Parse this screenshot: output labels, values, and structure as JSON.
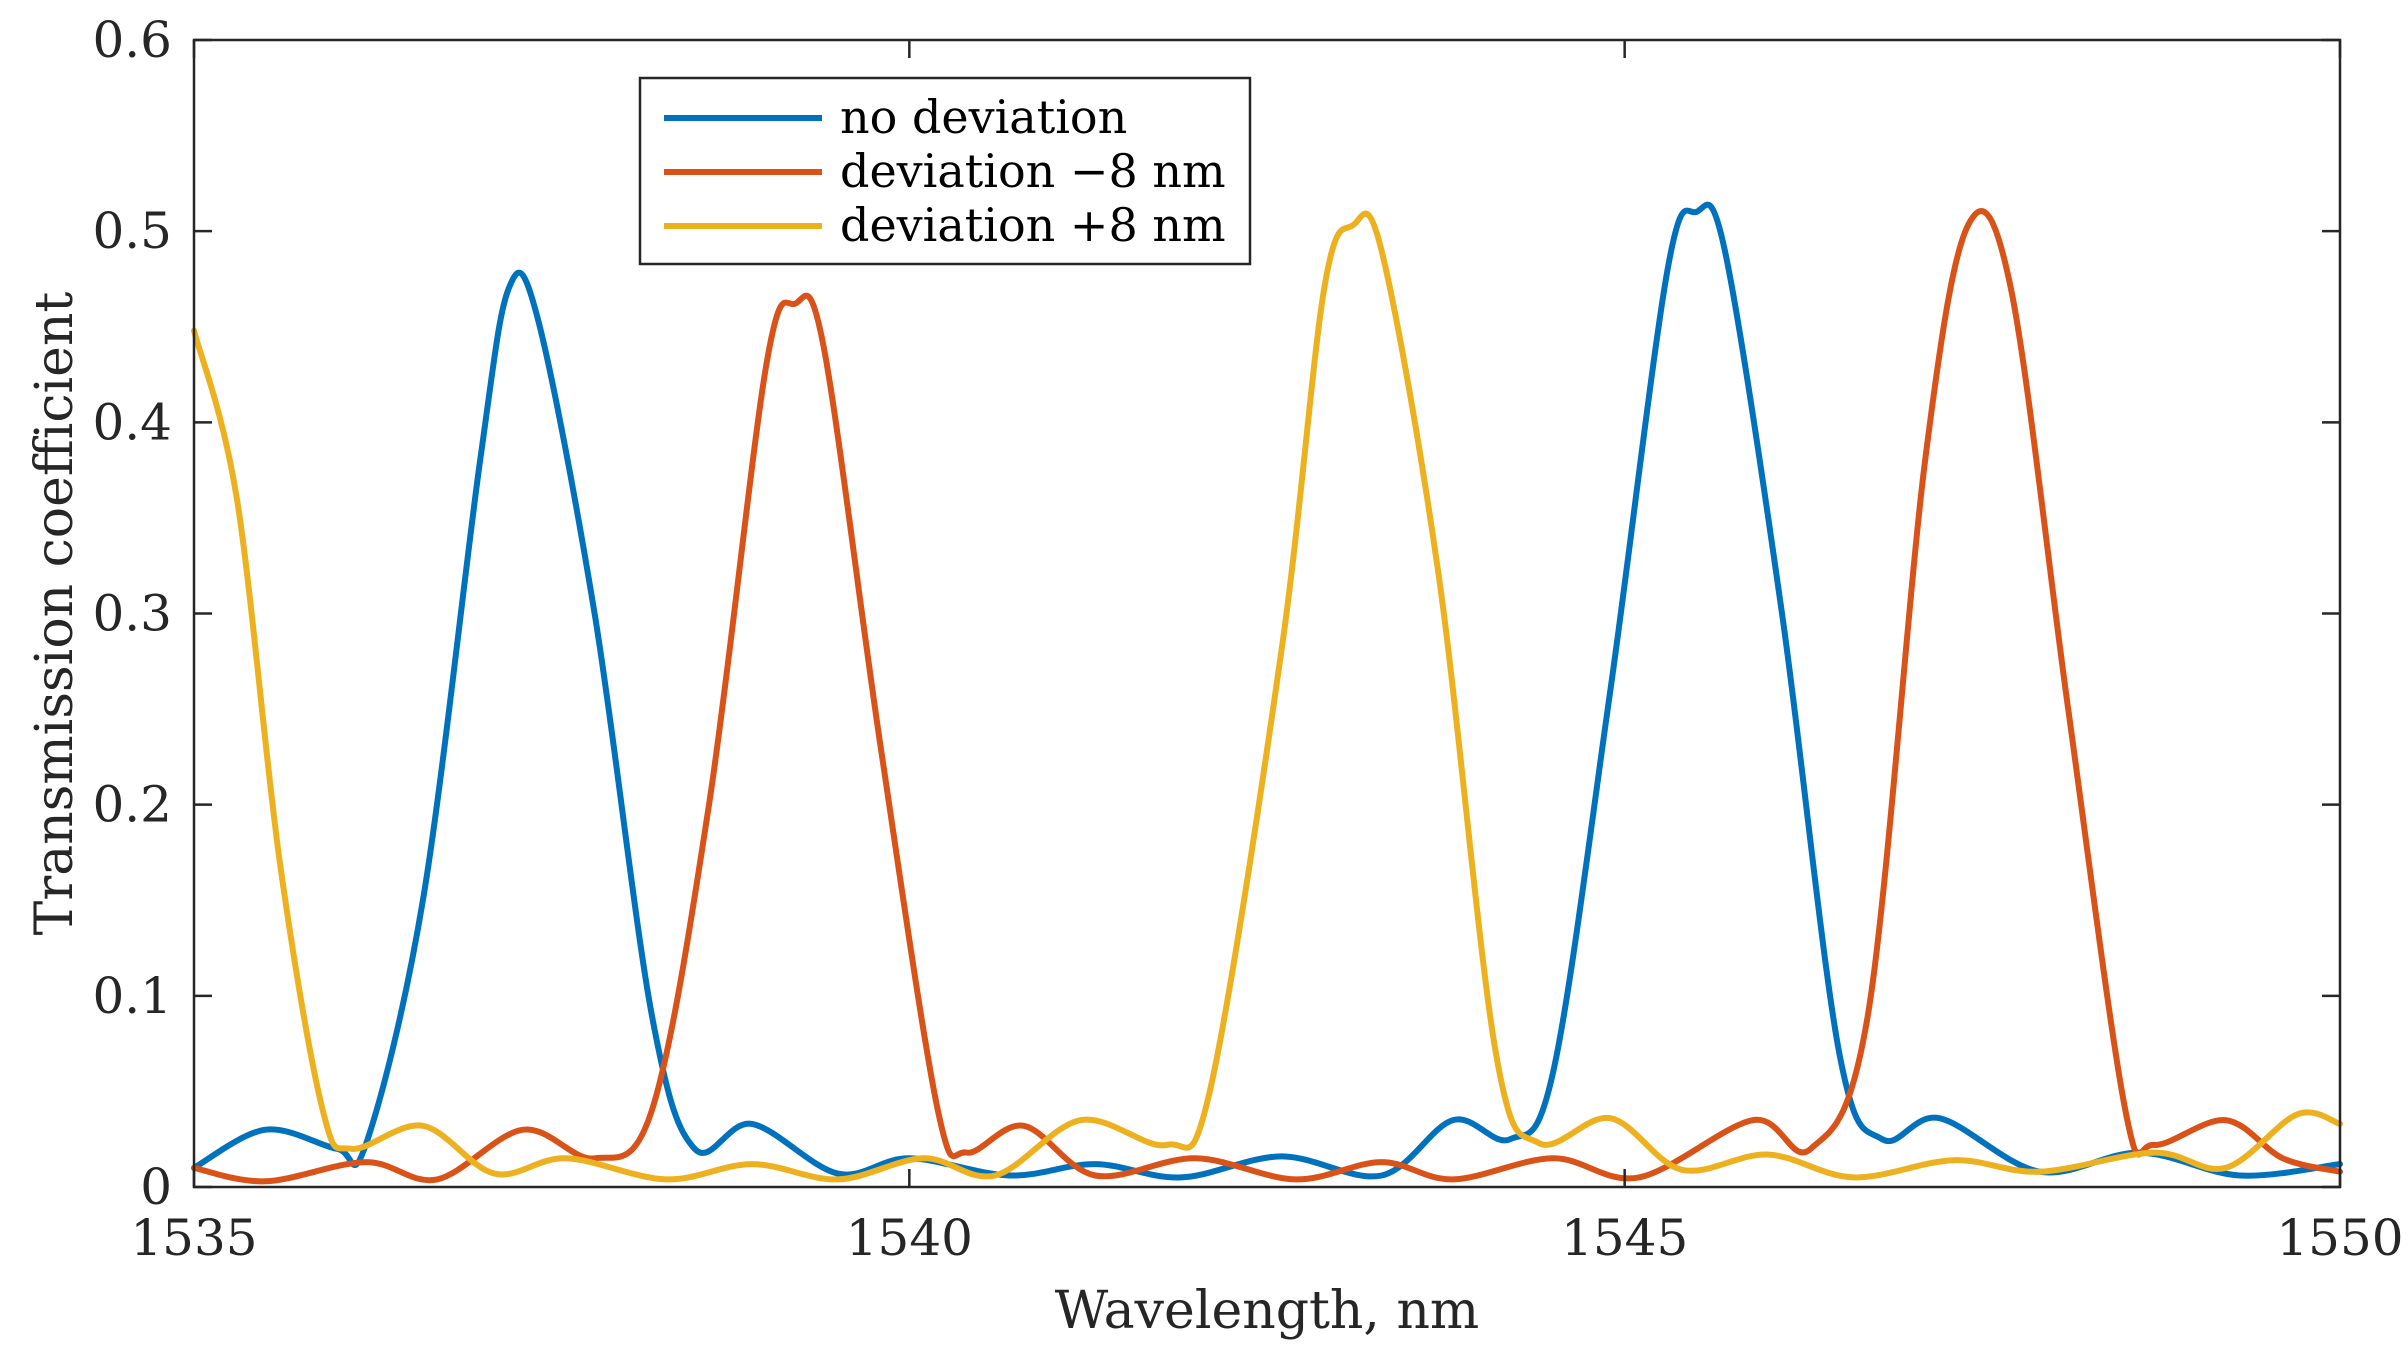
{
  "chart_data": {
    "type": "line",
    "title": "",
    "xlabel": "Wavelength, nm",
    "ylabel": "Transmission coefficient",
    "xlim": [
      1535,
      1550
    ],
    "ylim": [
      0,
      0.6
    ],
    "xticks": [
      1535,
      1540,
      1545,
      1550
    ],
    "xtick_labels": [
      "1535",
      "1540",
      "1545",
      "1550"
    ],
    "yticks": [
      0,
      0.1,
      0.2,
      0.3,
      0.4,
      0.5,
      0.6
    ],
    "ytick_labels": [
      "0",
      "0.1",
      "0.2",
      "0.3",
      "0.4",
      "0.5",
      "0.6"
    ],
    "grid": false,
    "legend_position": "top-center",
    "series": [
      {
        "name": "no deviation",
        "color": "#0072BD",
        "points": [
          [
            1535.0,
            0.01
          ],
          [
            1535.5,
            0.03
          ],
          [
            1536.0,
            0.02
          ],
          [
            1536.2,
            0.022
          ],
          [
            1536.6,
            0.15
          ],
          [
            1537.0,
            0.38
          ],
          [
            1537.2,
            0.47
          ],
          [
            1537.4,
            0.455
          ],
          [
            1537.8,
            0.3
          ],
          [
            1538.2,
            0.09
          ],
          [
            1538.5,
            0.02
          ],
          [
            1538.9,
            0.033
          ],
          [
            1539.5,
            0.007
          ],
          [
            1540.0,
            0.015
          ],
          [
            1540.7,
            0.006
          ],
          [
            1541.3,
            0.012
          ],
          [
            1541.9,
            0.005
          ],
          [
            1542.6,
            0.016
          ],
          [
            1543.3,
            0.006
          ],
          [
            1543.8,
            0.035
          ],
          [
            1544.2,
            0.025
          ],
          [
            1544.5,
            0.06
          ],
          [
            1544.9,
            0.26
          ],
          [
            1545.3,
            0.48
          ],
          [
            1545.5,
            0.51
          ],
          [
            1545.7,
            0.49
          ],
          [
            1546.1,
            0.3
          ],
          [
            1546.5,
            0.07
          ],
          [
            1546.8,
            0.025
          ],
          [
            1547.2,
            0.036
          ],
          [
            1547.9,
            0.008
          ],
          [
            1548.6,
            0.018
          ],
          [
            1549.3,
            0.006
          ],
          [
            1550.0,
            0.012
          ]
        ]
      },
      {
        "name": "deviation −8 nm",
        "color": "#D95319",
        "points": [
          [
            1535.0,
            0.01
          ],
          [
            1535.5,
            0.003
          ],
          [
            1536.2,
            0.013
          ],
          [
            1536.7,
            0.004
          ],
          [
            1537.3,
            0.03
          ],
          [
            1537.8,
            0.015
          ],
          [
            1538.2,
            0.04
          ],
          [
            1538.6,
            0.2
          ],
          [
            1539.0,
            0.43
          ],
          [
            1539.2,
            0.462
          ],
          [
            1539.4,
            0.44
          ],
          [
            1539.8,
            0.23
          ],
          [
            1540.2,
            0.04
          ],
          [
            1540.4,
            0.018
          ],
          [
            1540.8,
            0.032
          ],
          [
            1541.3,
            0.006
          ],
          [
            1542.0,
            0.015
          ],
          [
            1542.7,
            0.004
          ],
          [
            1543.3,
            0.013
          ],
          [
            1543.8,
            0.004
          ],
          [
            1544.5,
            0.015
          ],
          [
            1545.1,
            0.005
          ],
          [
            1545.9,
            0.035
          ],
          [
            1546.3,
            0.02
          ],
          [
            1546.7,
            0.09
          ],
          [
            1547.1,
            0.38
          ],
          [
            1547.4,
            0.503
          ],
          [
            1547.7,
            0.47
          ],
          [
            1548.1,
            0.25
          ],
          [
            1548.5,
            0.04
          ],
          [
            1548.7,
            0.022
          ],
          [
            1549.2,
            0.035
          ],
          [
            1549.6,
            0.015
          ],
          [
            1550.0,
            0.008
          ]
        ]
      },
      {
        "name": "deviation +8 nm",
        "color": "#EDB120",
        "points": [
          [
            1535.0,
            0.448
          ],
          [
            1535.3,
            0.36
          ],
          [
            1535.6,
            0.17
          ],
          [
            1535.9,
            0.04
          ],
          [
            1536.1,
            0.02
          ],
          [
            1536.6,
            0.032
          ],
          [
            1537.1,
            0.007
          ],
          [
            1537.6,
            0.015
          ],
          [
            1538.3,
            0.004
          ],
          [
            1538.9,
            0.012
          ],
          [
            1539.5,
            0.004
          ],
          [
            1540.1,
            0.015
          ],
          [
            1540.6,
            0.006
          ],
          [
            1541.2,
            0.035
          ],
          [
            1541.8,
            0.022
          ],
          [
            1542.1,
            0.05
          ],
          [
            1542.6,
            0.28
          ],
          [
            1542.9,
            0.47
          ],
          [
            1543.1,
            0.503
          ],
          [
            1543.3,
            0.49
          ],
          [
            1543.7,
            0.32
          ],
          [
            1544.1,
            0.07
          ],
          [
            1544.4,
            0.023
          ],
          [
            1544.9,
            0.036
          ],
          [
            1545.4,
            0.009
          ],
          [
            1546.0,
            0.017
          ],
          [
            1546.6,
            0.005
          ],
          [
            1547.3,
            0.014
          ],
          [
            1547.9,
            0.008
          ],
          [
            1548.7,
            0.018
          ],
          [
            1549.2,
            0.01
          ],
          [
            1549.7,
            0.038
          ],
          [
            1550.0,
            0.033
          ]
        ]
      }
    ]
  }
}
